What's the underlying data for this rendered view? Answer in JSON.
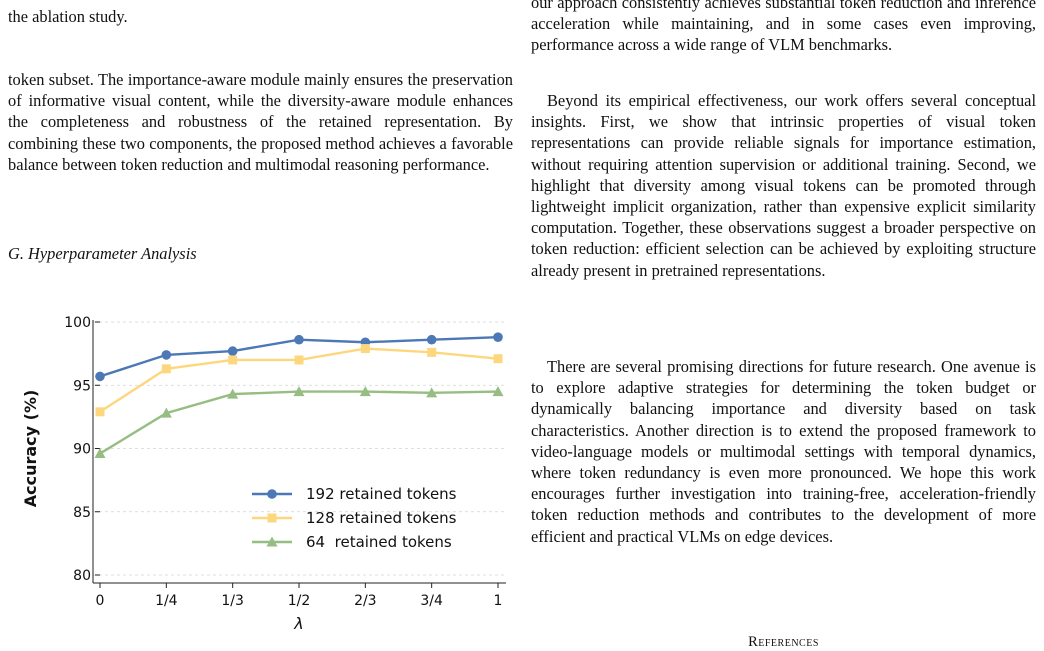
{
  "left_column": {
    "top_fragment": "the ablation study.",
    "paragraph": "token subset. The importance-aware module mainly ensures the preservation of informative visual content, while the diversity-aware module enhances the completeness and robustness of the retained representation. By combining these two components, the proposed method achieves a favorable balance between token reduction and multimodal reasoning performance.",
    "subsection_title": "G.  Hyperparameter Analysis"
  },
  "right_column": {
    "paragraph_1": "our approach consistently achieves substantial token reduction and inference acceleration while maintaining, and in some cases even improving, performance across a wide range of VLM benchmarks.",
    "paragraph_2": "Beyond its empirical effectiveness, our work offers several conceptual insights. First, we show that intrinsic properties of visual token representations can provide reliable signals for importance estimation, without requiring attention supervision or additional training. Second, we highlight that diversity among visual tokens can be promoted through lightweight implicit organization, rather than expensive explicit similarity computation. Together, these observations suggest a broader perspective on token reduction: efficient selection can be achieved by exploiting structure already present in pretrained representations.",
    "paragraph_3": "There are several promising directions for future research. One avenue is to explore adaptive strategies for determining the token budget or dynamically balancing importance and diversity based on task characteristics. Another direction is to extend the proposed framework to video-language models or multimodal settings with temporal dynamics, where token redundancy is even more pronounced. We hope this work encourages further investigation into training-free, acceleration-friendly token reduction methods and contributes to the development of more efficient and practical VLMs on edge devices.",
    "references_heading": "References"
  },
  "chart_data": {
    "type": "line",
    "xlabel": "λ",
    "ylabel": "Accuracy (%)",
    "categories": [
      "0",
      "1/4",
      "1/3",
      "1/2",
      "2/3",
      "3/4",
      "1"
    ],
    "ylim": [
      80,
      100
    ],
    "yticks": [
      "80",
      "85",
      "90",
      "95",
      "100"
    ],
    "grid": "horizontal dashed",
    "legend": "bottom-right",
    "series": [
      {
        "name": "192 retained tokens",
        "marker": "circle",
        "color": "#4c78b5",
        "values": [
          95.7,
          97.4,
          97.7,
          98.6,
          98.4,
          98.6,
          98.8
        ]
      },
      {
        "name": "128 retained tokens",
        "marker": "square",
        "color": "#fdd77e",
        "values": [
          92.9,
          96.3,
          97.0,
          97.0,
          97.9,
          97.6,
          97.1
        ]
      },
      {
        "name": "64  retained tokens",
        "marker": "triangle",
        "color": "#96bd82",
        "values": [
          89.6,
          92.8,
          94.3,
          94.5,
          94.5,
          94.4,
          94.5
        ]
      }
    ]
  }
}
